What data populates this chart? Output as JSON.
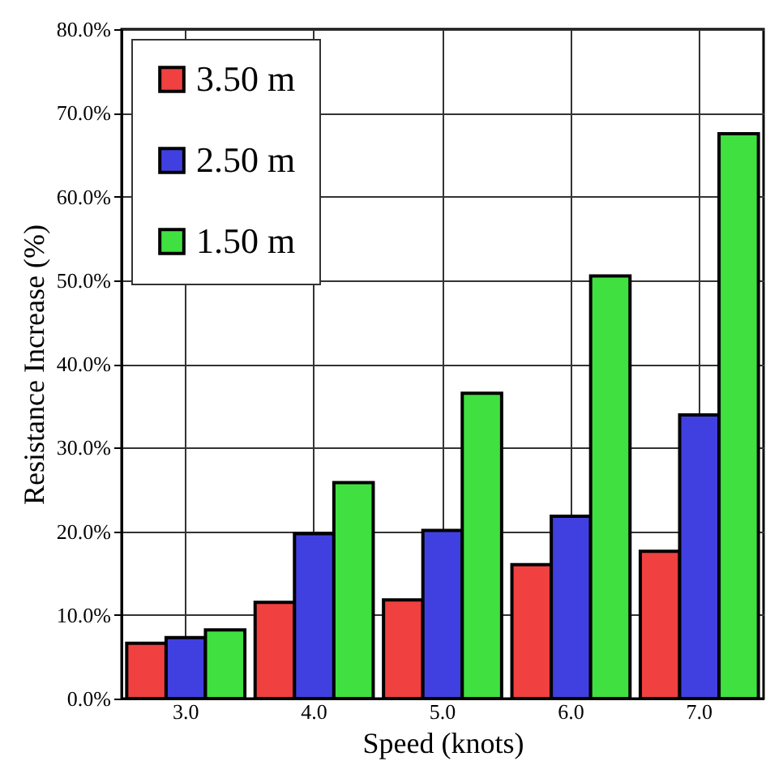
{
  "chart_data": {
    "type": "bar",
    "xlabel": "Speed (knots)",
    "ylabel": "Resistance Increase (%)",
    "categories": [
      "3.0",
      "4.0",
      "5.0",
      "6.0",
      "7.0"
    ],
    "series": [
      {
        "name": "3.50 m",
        "color": "#f04040",
        "values": [
          6.6,
          11.5,
          11.8,
          16.0,
          17.6
        ]
      },
      {
        "name": "2.50 m",
        "color": "#4040e0",
        "values": [
          7.3,
          19.7,
          20.1,
          21.8,
          33.9
        ]
      },
      {
        "name": "1.50 m",
        "color": "#40e040",
        "values": [
          8.2,
          25.8,
          36.5,
          50.5,
          67.5
        ]
      }
    ],
    "ylim": [
      0,
      80
    ],
    "yticks": [
      {
        "value": 0,
        "label": "0.0%"
      },
      {
        "value": 10,
        "label": "10.0%"
      },
      {
        "value": 20,
        "label": "20.0%"
      },
      {
        "value": 30,
        "label": "30.0%"
      },
      {
        "value": 40,
        "label": "40.0%"
      },
      {
        "value": 50,
        "label": "50.0%"
      },
      {
        "value": 60,
        "label": "60.0%"
      },
      {
        "value": 70,
        "label": "70.0%"
      },
      {
        "value": 80,
        "label": "80.0%"
      }
    ],
    "grid": true,
    "legend": "top left"
  }
}
